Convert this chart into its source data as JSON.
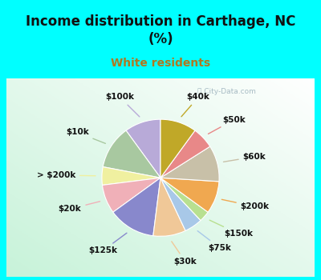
{
  "title": "Income distribution in Carthage, NC\n(%)",
  "subtitle": "White residents",
  "title_color": "#111111",
  "subtitle_color": "#b07820",
  "bg_color": "#00ffff",
  "watermark": "ⓘ City-Data.com",
  "labels": [
    "$100k",
    "$10k",
    "> $200k",
    "$20k",
    "$125k",
    "$30k",
    "$75k",
    "$150k",
    "$200k",
    "$60k",
    "$50k",
    "$40k"
  ],
  "values": [
    10,
    12,
    5,
    8,
    13,
    9,
    5,
    3,
    9,
    10,
    6,
    10
  ],
  "colors": [
    "#b8aad8",
    "#a8c8a0",
    "#f0f0a0",
    "#f0b0b8",
    "#8888cc",
    "#f0c898",
    "#a8c8e8",
    "#b8e090",
    "#f0a850",
    "#c8c0a8",
    "#e88888",
    "#c0a828"
  ],
  "startangle": 90,
  "label_fontsize": 7.5,
  "title_fontsize": 12,
  "subtitle_fontsize": 10
}
